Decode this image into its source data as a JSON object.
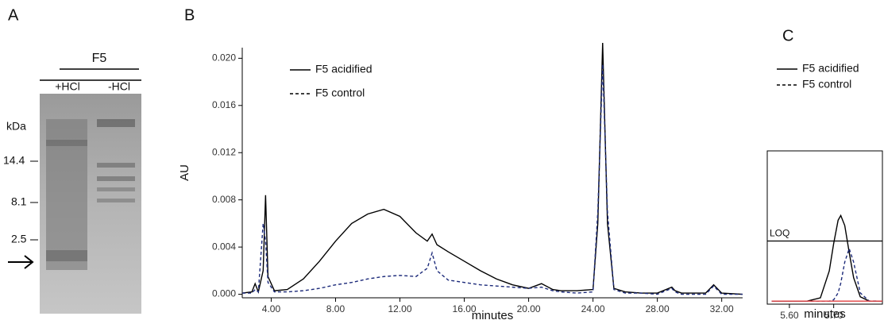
{
  "figure": {
    "panel_labels": [
      "A",
      "B",
      "C"
    ],
    "gel": {
      "group": "F5",
      "lanes": [
        "+HCl",
        "-HCl"
      ],
      "marker_unit": "kDa",
      "markers": [
        "14.4",
        "8.1",
        "2.5"
      ]
    }
  },
  "chart_data": [
    {
      "type": "line",
      "x_label": "minutes",
      "y_label": "AU",
      "xlim": [
        2.2,
        33.3
      ],
      "ylim": [
        -0.0003,
        0.0209
      ],
      "xticks": [
        {
          "value": 4,
          "label": "4.00"
        },
        {
          "value": 8,
          "label": "8.00"
        },
        {
          "value": 12,
          "label": "12.00"
        },
        {
          "value": 16,
          "label": "16.00"
        },
        {
          "value": 20,
          "label": "20.00"
        },
        {
          "value": 24,
          "label": "24.00"
        },
        {
          "value": 28,
          "label": "28.00"
        },
        {
          "value": 32,
          "label": "32.00"
        }
      ],
      "yticks": [
        {
          "value": 0,
          "label": "0.000"
        },
        {
          "value": 0.004,
          "label": "0.004"
        },
        {
          "value": 0.008,
          "label": "0.008"
        },
        {
          "value": 0.012,
          "label": "0.012"
        },
        {
          "value": 0.016,
          "label": "0.016"
        },
        {
          "value": 0.02,
          "label": "0.020"
        }
      ],
      "legend": "upper left",
      "x": [
        2.2,
        2.8,
        3.0,
        3.2,
        3.5,
        3.65,
        3.8,
        4.2,
        5,
        6,
        7,
        8,
        9,
        10,
        11,
        12,
        13,
        13.7,
        14,
        14.3,
        15,
        16,
        17,
        18,
        19,
        20,
        20.8,
        21.5,
        22,
        23,
        24,
        24.3,
        24.6,
        24.9,
        25.3,
        26,
        27,
        28,
        28.9,
        29.1,
        29.5,
        30,
        31,
        31.5,
        32,
        33.3
      ],
      "series": [
        {
          "name": "F5 acidified",
          "color": "#000000",
          "line_style": "solid",
          "values": [
            0.0001,
            0.0002,
            0.0009,
            0.0002,
            0.002,
            0.0084,
            0.0015,
            0.0003,
            0.0004,
            0.0013,
            0.0028,
            0.0045,
            0.006,
            0.0068,
            0.0072,
            0.0066,
            0.0052,
            0.0045,
            0.0051,
            0.0042,
            0.0036,
            0.0028,
            0.002,
            0.0013,
            0.0008,
            0.0005,
            0.0009,
            0.0004,
            0.0003,
            0.0003,
            0.0004,
            0.006,
            0.0213,
            0.006,
            0.0005,
            0.0002,
            0.0001,
            0.0001,
            0.0006,
            0.0003,
            0.0001,
            0.0001,
            0.0001,
            0.0008,
            0.0001,
            0
          ]
        },
        {
          "name": "F5 control",
          "color": "#1c2a7a",
          "line_style": "dashed",
          "values": [
            0.0001,
            0.0001,
            0.0004,
            0.0002,
            0.006,
            0.0045,
            0.001,
            0.0002,
            0.0002,
            0.0003,
            0.0005,
            0.0008,
            0.001,
            0.0013,
            0.0015,
            0.0016,
            0.0015,
            0.0022,
            0.0035,
            0.002,
            0.0012,
            0.001,
            0.0008,
            0.0007,
            0.0006,
            0.0005,
            0.0006,
            0.0003,
            0.0002,
            0.0001,
            0.0002,
            0.007,
            0.0195,
            0.007,
            0.0004,
            0.0001,
            0.0001,
            0,
            0.0005,
            0.0002,
            0,
            0,
            0,
            0.0007,
            0,
            0
          ]
        }
      ]
    },
    {
      "type": "line",
      "x_label": "minutes",
      "xlim": [
        5.55,
        5.81
      ],
      "ylim": [
        -2,
        100
      ],
      "xticks": [
        {
          "value": 5.6,
          "label": "5.60"
        },
        {
          "value": 5.7,
          "label": "5.70"
        }
      ],
      "loq": {
        "label": "LOQ",
        "value": 40
      },
      "legend": "above",
      "x": [
        5.56,
        5.64,
        5.67,
        5.69,
        5.7,
        5.71,
        5.716,
        5.725,
        5.735,
        5.745,
        5.76,
        5.78,
        5.81
      ],
      "series": [
        {
          "name": "F5 acidified",
          "color": "#000000",
          "line_style": "solid",
          "values": [
            0,
            0,
            2.2,
            20.1,
            38.4,
            53.9,
            57,
            50.3,
            32.5,
            15.6,
            2.9,
            0.1,
            0
          ]
        },
        {
          "name": "F5 control",
          "color": "#1c2a7a",
          "line_style": "dashed",
          "values": [
            0,
            0,
            0,
            0,
            0.9,
            5.5,
            12.0,
            26.0,
            35,
            26.0,
            5.5,
            0.1,
            0
          ]
        },
        {
          "color": "#e04040",
          "line_style": "solid",
          "values": [
            0,
            0,
            0,
            0,
            0,
            0,
            0,
            0,
            0,
            0,
            0,
            0,
            0
          ]
        }
      ]
    }
  ]
}
